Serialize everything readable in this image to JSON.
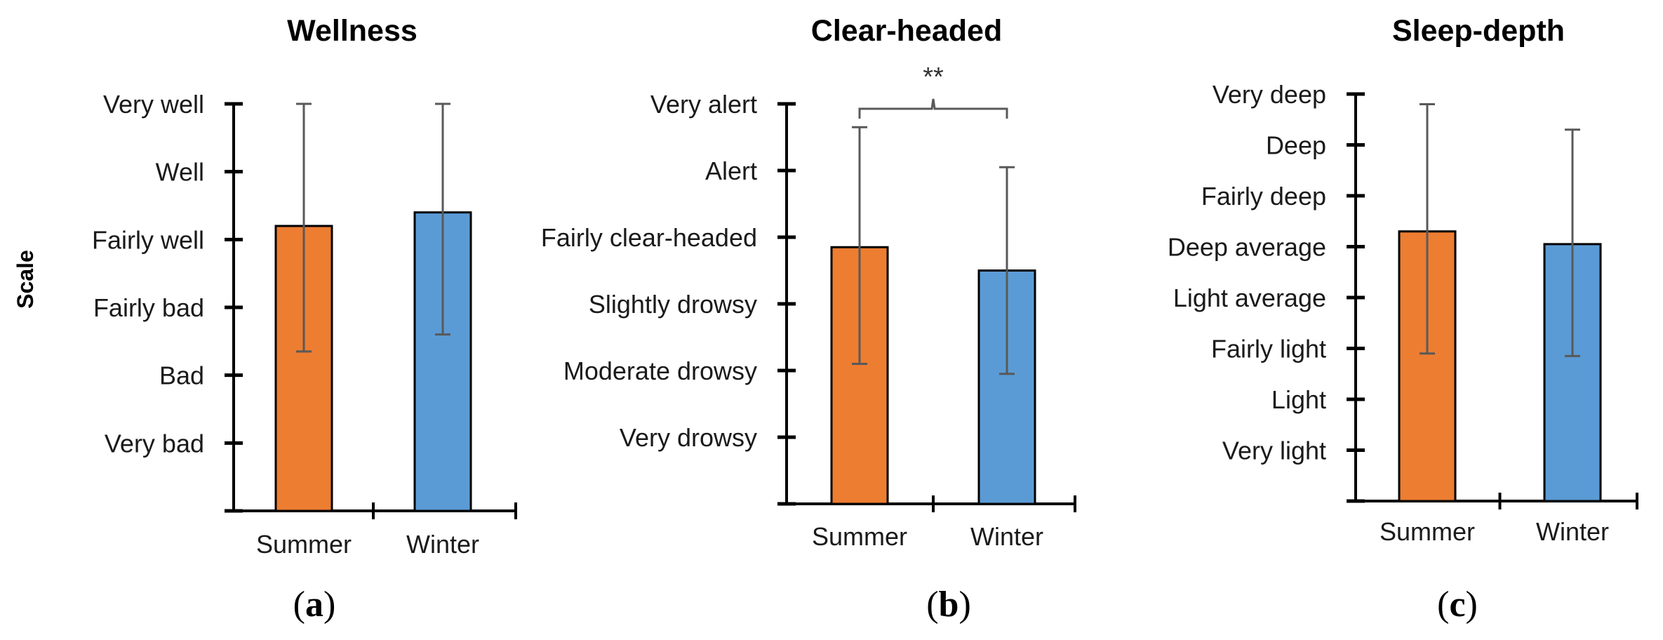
{
  "chart_data": [
    {
      "type": "bar",
      "panel": "a",
      "title": "Wellness",
      "ylabel": "Scale",
      "categories": [
        "Summer",
        "Winter"
      ],
      "y_tick_labels": [
        "Very bad",
        "Bad",
        "Fairly bad",
        "Fairly well",
        "Well",
        "Very well"
      ],
      "ylim": [
        0,
        6
      ],
      "values": [
        4.2,
        4.4
      ],
      "error_low": [
        2.35,
        2.6
      ],
      "error_high": [
        6.0,
        6.0
      ],
      "colors": [
        "#ED7D31",
        "#5B9BD5"
      ],
      "grid": false,
      "significance": null
    },
    {
      "type": "bar",
      "panel": "b",
      "title": "Clear-headed",
      "categories": [
        "Summer",
        "Winter"
      ],
      "y_tick_labels": [
        "Very drowsy",
        "Moderate drowsy",
        "Slightly drowsy",
        "Fairly clear-headed",
        "Alert",
        "Very alert"
      ],
      "ylim": [
        0,
        6
      ],
      "values": [
        3.85,
        3.5
      ],
      "error_low": [
        2.1,
        1.95
      ],
      "error_high": [
        5.65,
        5.05
      ],
      "colors": [
        "#ED7D31",
        "#5B9BD5"
      ],
      "grid": false,
      "significance": "**"
    },
    {
      "type": "bar",
      "panel": "c",
      "title": "Sleep-depth",
      "categories": [
        "Summer",
        "Winter"
      ],
      "y_tick_labels": [
        "Very light",
        "Light",
        "Fairly light",
        "Light average",
        "Deep average",
        "Fairly deep",
        "Deep",
        "Very deep"
      ],
      "ylim": [
        0,
        8
      ],
      "values": [
        5.3,
        5.05
      ],
      "error_low": [
        2.9,
        2.85
      ],
      "error_high": [
        7.8,
        7.3
      ],
      "colors": [
        "#ED7D31",
        "#5B9BD5"
      ],
      "grid": false,
      "significance": null
    }
  ]
}
